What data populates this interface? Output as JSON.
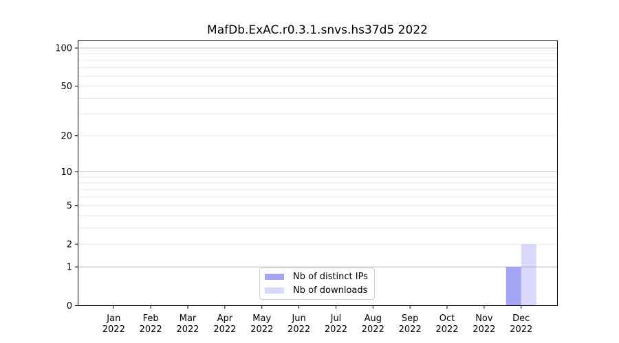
{
  "title": "MafDb.ExAC.r0.3.1.snvs.hs37d5 2022",
  "colors": {
    "axis": "#000000",
    "grid_major": "#bdbdbd",
    "grid_minor": "#e9e9e9",
    "legend_border": "#cccccc",
    "distinct_ips_bar": "rgba(110,110,240,0.62)",
    "downloads_bar": "rgba(150,150,238,0.36)"
  },
  "chart_data": {
    "type": "bar",
    "title": "MafDb.ExAC.r0.3.1.snvs.hs37d5 2022",
    "categories": [
      "Jan 2022",
      "Feb 2022",
      "Mar 2022",
      "Apr 2022",
      "May 2022",
      "Jun 2022",
      "Jul 2022",
      "Aug 2022",
      "Sep 2022",
      "Oct 2022",
      "Nov 2022",
      "Dec 2022"
    ],
    "series": [
      {
        "name": "Nb of distinct IPs",
        "color": "rgba(110,110,240,0.62)",
        "values": [
          0,
          0,
          0,
          0,
          0,
          0,
          0,
          0,
          0,
          0,
          0,
          1
        ]
      },
      {
        "name": "Nb of downloads",
        "color": "rgba(150,150,238,0.36)",
        "values": [
          0,
          0,
          0,
          0,
          0,
          0,
          0,
          0,
          0,
          0,
          0,
          2
        ]
      }
    ],
    "xlabel": "",
    "ylabel": "",
    "yscale": "log1p",
    "ylim": [
      0,
      115
    ],
    "y_ticks": [
      0,
      1,
      2,
      5,
      10,
      20,
      50,
      100
    ],
    "y_minor_gridlines": [
      2,
      3,
      4,
      5,
      6,
      7,
      8,
      9,
      20,
      30,
      40,
      50,
      60,
      70,
      80,
      90
    ],
    "y_major_gridlines": [
      1,
      10,
      100
    ],
    "grid": "horizontal",
    "legend_position": "lower-center-inside"
  }
}
